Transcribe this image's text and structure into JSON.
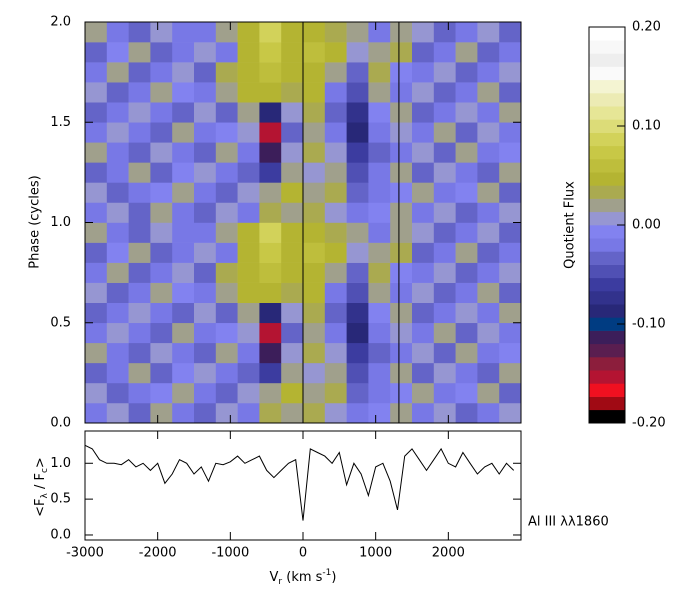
{
  "chart_data": [
    {
      "type": "heatmap",
      "y_label": "Phase (cycles)",
      "xlim": [
        -3000,
        3000
      ],
      "xticks": [
        -3000,
        -2000,
        -1000,
        0,
        1000,
        2000
      ],
      "ylim": [
        0,
        2
      ],
      "yticks": [
        {
          "value": 0,
          "label": "0.0"
        },
        {
          "value": 0.5,
          "label": "0.5"
        },
        {
          "value": 1,
          "label": "1.0"
        },
        {
          "value": 1.5,
          "label": "1.5"
        },
        {
          "value": 2,
          "label": "2.0"
        }
      ],
      "reference_lines": [
        0,
        1320
      ],
      "x_edges": [
        -3000,
        -2700,
        -2400,
        -2100,
        -1800,
        -1500,
        -1200,
        -900,
        -600,
        -300,
        0,
        300,
        600,
        900,
        1200,
        1500,
        1800,
        2100,
        2400,
        2700,
        3000
      ],
      "y_edges": [
        0,
        0.1,
        0.2,
        0.3,
        0.4,
        0.5,
        0.6,
        0.7,
        0.8,
        0.9,
        1.0,
        1.1,
        1.2,
        1.3,
        1.4,
        1.5,
        1.6,
        1.7,
        1.8,
        1.9,
        2.0
      ],
      "z": [
        [
          -0.02,
          0.01,
          -0.03,
          0.02,
          -0.02,
          -0.03,
          0.01,
          -0.02,
          0.03,
          0.02,
          0.03,
          0.01,
          -0.02,
          -0.01,
          0.02,
          -0.02,
          0.01,
          -0.03,
          -0.02,
          0.01
        ],
        [
          0.01,
          -0.03,
          -0.02,
          -0.01,
          0.02,
          -0.02,
          -0.03,
          0.01,
          0.02,
          0.04,
          0.02,
          0.03,
          -0.03,
          -0.02,
          -0.01,
          0.02,
          -0.02,
          -0.01,
          0.02,
          -0.03
        ],
        [
          -0.03,
          -0.02,
          0.02,
          -0.03,
          -0.01,
          0.01,
          -0.02,
          -0.03,
          -0.06,
          0.02,
          0.01,
          0.02,
          -0.04,
          -0.02,
          0.02,
          -0.03,
          0.01,
          -0.02,
          -0.03,
          0.02
        ],
        [
          0.02,
          -0.02,
          -0.03,
          0.01,
          -0.02,
          -0.03,
          0.02,
          -0.02,
          -0.12,
          0.01,
          0.03,
          0.01,
          -0.06,
          -0.03,
          -0.02,
          0.01,
          -0.03,
          0.02,
          -0.02,
          -0.01
        ],
        [
          -0.02,
          0.01,
          -0.02,
          -0.03,
          0.02,
          -0.02,
          -0.01,
          0.01,
          -0.15,
          -0.03,
          0.02,
          -0.02,
          -0.09,
          -0.02,
          0.01,
          -0.02,
          0.02,
          -0.03,
          0.01,
          -0.02
        ],
        [
          -0.03,
          -0.02,
          0.01,
          -0.02,
          -0.03,
          0.01,
          -0.03,
          0.02,
          -0.09,
          0.01,
          0.03,
          -0.03,
          -0.07,
          -0.01,
          0.02,
          -0.03,
          -0.02,
          0.01,
          -0.02,
          0.02
        ],
        [
          0.01,
          -0.03,
          -0.02,
          0.02,
          -0.01,
          -0.02,
          0.02,
          0.04,
          0.05,
          0.03,
          0.04,
          -0.02,
          -0.05,
          0.02,
          -0.02,
          0.01,
          -0.03,
          -0.02,
          0.02,
          -0.03
        ],
        [
          -0.02,
          0.02,
          -0.03,
          -0.02,
          0.01,
          -0.03,
          0.03,
          0.05,
          0.06,
          0.04,
          0.05,
          0.02,
          -0.03,
          0.03,
          -0.01,
          -0.02,
          0.01,
          -0.03,
          -0.02,
          0.01
        ],
        [
          -0.03,
          -0.01,
          0.02,
          -0.03,
          -0.02,
          0.01,
          -0.02,
          0.04,
          0.07,
          0.05,
          0.06,
          0.04,
          0.01,
          0.02,
          0.03,
          -0.03,
          -0.02,
          0.02,
          -0.03,
          -0.02
        ],
        [
          0.02,
          -0.02,
          -0.03,
          0.01,
          -0.02,
          -0.02,
          0.02,
          0.05,
          0.08,
          0.04,
          0.05,
          0.03,
          0.02,
          -0.02,
          0.02,
          0.01,
          -0.03,
          -0.02,
          0.01,
          -0.03
        ],
        [
          -0.02,
          0.01,
          -0.03,
          0.02,
          -0.02,
          -0.03,
          0.01,
          -0.02,
          0.03,
          0.02,
          0.03,
          0.01,
          -0.02,
          -0.01,
          0.02,
          -0.02,
          0.01,
          -0.03,
          -0.02,
          0.01
        ],
        [
          0.01,
          -0.03,
          -0.02,
          -0.01,
          0.02,
          -0.02,
          -0.03,
          0.01,
          0.02,
          0.04,
          0.02,
          0.03,
          -0.03,
          -0.02,
          -0.01,
          0.02,
          -0.02,
          -0.01,
          0.02,
          -0.03
        ],
        [
          -0.03,
          -0.02,
          0.02,
          -0.03,
          -0.01,
          0.01,
          -0.02,
          -0.03,
          -0.06,
          0.02,
          0.01,
          0.02,
          -0.04,
          -0.02,
          0.02,
          -0.03,
          0.01,
          -0.02,
          -0.03,
          0.02
        ],
        [
          0.02,
          -0.02,
          -0.03,
          0.01,
          -0.02,
          -0.03,
          0.02,
          -0.02,
          -0.12,
          0.01,
          0.03,
          0.01,
          -0.06,
          -0.03,
          -0.02,
          0.01,
          -0.03,
          0.02,
          -0.02,
          -0.01
        ],
        [
          -0.02,
          0.01,
          -0.02,
          -0.03,
          0.02,
          -0.02,
          -0.01,
          0.01,
          -0.15,
          -0.03,
          0.02,
          -0.02,
          -0.09,
          -0.02,
          0.01,
          -0.02,
          0.02,
          -0.03,
          0.01,
          -0.02
        ],
        [
          -0.03,
          -0.02,
          0.01,
          -0.02,
          -0.03,
          0.01,
          -0.03,
          0.02,
          -0.09,
          0.01,
          0.03,
          -0.03,
          -0.07,
          -0.01,
          0.02,
          -0.03,
          -0.02,
          0.01,
          -0.02,
          0.02
        ],
        [
          0.01,
          -0.03,
          -0.02,
          0.02,
          -0.01,
          -0.02,
          0.02,
          0.04,
          0.05,
          0.03,
          0.04,
          -0.02,
          -0.05,
          0.02,
          -0.02,
          0.01,
          -0.03,
          -0.02,
          0.02,
          -0.03
        ],
        [
          -0.02,
          0.02,
          -0.03,
          -0.02,
          0.01,
          -0.03,
          0.03,
          0.05,
          0.06,
          0.04,
          0.05,
          0.02,
          -0.03,
          0.03,
          -0.01,
          -0.02,
          0.01,
          -0.03,
          -0.02,
          0.01
        ],
        [
          -0.03,
          -0.01,
          0.02,
          -0.03,
          -0.02,
          0.01,
          -0.02,
          0.04,
          0.07,
          0.05,
          0.06,
          0.04,
          0.01,
          0.02,
          0.03,
          -0.03,
          -0.02,
          0.02,
          -0.03,
          -0.02
        ],
        [
          0.02,
          -0.02,
          -0.03,
          0.01,
          -0.02,
          -0.02,
          0.02,
          0.05,
          0.08,
          0.04,
          0.05,
          0.03,
          0.02,
          -0.02,
          0.02,
          0.01,
          -0.03,
          -0.02,
          0.01,
          -0.03
        ]
      ],
      "colorbar": {
        "label": "Quotient Flux",
        "zlim": [
          -0.2,
          0.2
        ],
        "zticks": [
          {
            "value": 0.2,
            "label": "0.20"
          },
          {
            "value": 0.1,
            "label": "0.10"
          },
          {
            "value": 0,
            "label": "0.00"
          },
          {
            "value": -0.1,
            "label": "-0.10"
          },
          {
            "value": -0.2,
            "label": "-0.20"
          }
        ],
        "colors": [
          "#000000",
          "#a00a14",
          "#f01020",
          "#b41432",
          "#8c1e3c",
          "#5a1e50",
          "#3c1e5a",
          "#003c82",
          "#282878",
          "#32328c",
          "#3c3ca0",
          "#5050b4",
          "#6464c8",
          "#7878e6",
          "#8282f0",
          "#9696d2",
          "#a0a08c",
          "#aaaa50",
          "#b4b432",
          "#bebe3c",
          "#c8c846",
          "#d2d25a",
          "#dcdc78",
          "#e6e696",
          "#ecebb4",
          "#f4f4d2",
          "#fafafa",
          "#eeeeee",
          "#f8f8f8",
          "#ffffff"
        ]
      }
    },
    {
      "type": "line",
      "x_label": {
        "main": "V",
        "sub": "r",
        "rest": " (km s",
        "sup": "-1",
        "end": ")"
      },
      "y_label": {
        "open": "<F",
        "sub1": "λ",
        "mid": " / F",
        "sub2": "c",
        "close": ">"
      },
      "annotation": "Al III λλ1860",
      "xlim": [
        -3000,
        3000
      ],
      "xticks": [
        -3000,
        -2000,
        -1000,
        0,
        1000,
        2000
      ],
      "ylim": [
        -0.07,
        1.45
      ],
      "yticks": [
        {
          "value": 0,
          "label": "0.0"
        },
        {
          "value": 0.5,
          "label": "0.5"
        },
        {
          "value": 1,
          "label": "1.0"
        }
      ],
      "x": [
        -3000,
        -2900,
        -2800,
        -2700,
        -2600,
        -2500,
        -2400,
        -2300,
        -2200,
        -2100,
        -2000,
        -1900,
        -1800,
        -1700,
        -1600,
        -1500,
        -1400,
        -1300,
        -1200,
        -1100,
        -1000,
        -900,
        -800,
        -700,
        -600,
        -500,
        -400,
        -300,
        -200,
        -100,
        0,
        100,
        200,
        300,
        400,
        500,
        600,
        700,
        800,
        900,
        1000,
        1100,
        1200,
        1300,
        1400,
        1500,
        1600,
        1700,
        1800,
        1900,
        2000,
        2100,
        2200,
        2300,
        2400,
        2500,
        2600,
        2700,
        2800,
        2900
      ],
      "color": "#000000",
      "values": [
        1.25,
        1.2,
        1.05,
        1.0,
        1.0,
        0.98,
        1.05,
        0.95,
        1.0,
        0.9,
        1.0,
        0.72,
        0.85,
        1.05,
        1.0,
        0.85,
        0.95,
        0.75,
        1.0,
        0.98,
        1.02,
        1.1,
        1.0,
        1.05,
        1.1,
        0.9,
        0.8,
        0.9,
        1.0,
        1.05,
        0.2,
        1.2,
        1.15,
        1.1,
        1.0,
        1.15,
        0.7,
        1.0,
        0.85,
        0.55,
        0.95,
        1.0,
        0.75,
        0.35,
        1.1,
        1.2,
        1.05,
        0.9,
        1.05,
        1.2,
        1.0,
        0.95,
        1.15,
        1.0,
        0.85,
        0.95,
        1.0,
        0.85,
        1.0,
        0.9
      ]
    }
  ]
}
